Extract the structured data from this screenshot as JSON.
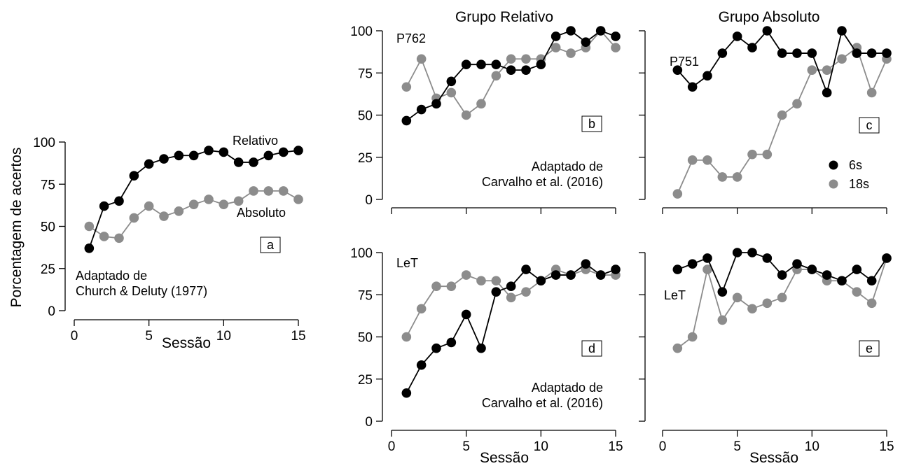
{
  "colors": {
    "black_series": "#000000",
    "gray_series": "#8c8c8c"
  },
  "y_axis_title": "Porcentagem de acertos",
  "legend": {
    "s6": "6s",
    "s18": "18s"
  },
  "chart_data": [
    {
      "type": "line",
      "panel": "a",
      "xlabel": "Sessão",
      "xlim": [
        0,
        15
      ],
      "ylim": [
        0,
        100
      ],
      "xticks": [
        0,
        5,
        10,
        15
      ],
      "yticks": [
        0,
        25,
        50,
        75,
        100
      ],
      "x": [
        1,
        2,
        3,
        4,
        5,
        6,
        7,
        8,
        9,
        10,
        11,
        12,
        13,
        14,
        15
      ],
      "series": [
        {
          "name": "Relativo",
          "color": "#000000",
          "values": [
            37,
            62,
            65,
            80,
            87,
            90,
            92,
            92,
            95,
            94,
            88,
            88,
            92,
            94,
            95
          ]
        },
        {
          "name": "Absoluto",
          "color": "#8c8c8c",
          "values": [
            50,
            44,
            43,
            55,
            62,
            56,
            59,
            63,
            66,
            63,
            65,
            71,
            71,
            71,
            66
          ]
        }
      ],
      "annotations": [
        "Adaptado de",
        "Church & Deluty (1977)"
      ]
    },
    {
      "type": "line",
      "panel": "b",
      "title": "Grupo Relativo",
      "subject": "P762",
      "xlim": [
        0,
        15
      ],
      "ylim": [
        0,
        100
      ],
      "yticks": [
        0,
        25,
        50,
        75,
        100
      ],
      "x": [
        1,
        2,
        3,
        4,
        5,
        6,
        7,
        8,
        9,
        10,
        11,
        12,
        13,
        14,
        15
      ],
      "series": [
        {
          "color": "#000000",
          "values": [
            46.7,
            53.3,
            56.7,
            70,
            80,
            80,
            80,
            76.7,
            76.7,
            80,
            96.7,
            100,
            93.3,
            100,
            96.7
          ]
        },
        {
          "color": "#8c8c8c",
          "values": [
            66.7,
            83.3,
            60,
            63.3,
            50,
            56.7,
            73.3,
            83.3,
            83.3,
            83.3,
            90,
            86.7,
            90,
            100,
            90
          ]
        }
      ],
      "annotations": [
        "Adaptado de",
        "Carvalho et al. (2016)"
      ]
    },
    {
      "type": "line",
      "panel": "c",
      "title": "Grupo Absoluto",
      "subject": "P751",
      "xlim": [
        0,
        15
      ],
      "ylim": [
        0,
        100
      ],
      "x": [
        1,
        2,
        3,
        4,
        5,
        6,
        7,
        8,
        9,
        10,
        11,
        12,
        13,
        14,
        15
      ],
      "series": [
        {
          "name": "6s",
          "color": "#000000",
          "values": [
            76.7,
            66.7,
            73.3,
            86.7,
            96.7,
            90,
            100,
            86.7,
            86.7,
            86.7,
            63.3,
            100,
            86.7,
            86.7,
            86.7
          ]
        },
        {
          "name": "18s",
          "color": "#8c8c8c",
          "values": [
            3.3,
            23.3,
            23.3,
            13.3,
            13.3,
            26.7,
            26.7,
            50,
            56.7,
            76.7,
            76.7,
            83.3,
            90,
            63.3,
            83.3
          ]
        }
      ]
    },
    {
      "type": "line",
      "panel": "d",
      "subject": "LeT",
      "xlabel": "Sessão",
      "xlim": [
        0,
        15
      ],
      "ylim": [
        0,
        100
      ],
      "xticks": [
        0,
        5,
        10,
        15
      ],
      "yticks": [
        0,
        25,
        50,
        75,
        100
      ],
      "x": [
        1,
        2,
        3,
        4,
        5,
        6,
        7,
        8,
        9,
        10,
        11,
        12,
        13,
        14,
        15
      ],
      "series": [
        {
          "color": "#000000",
          "values": [
            16.7,
            33.3,
            43.3,
            46.7,
            63.3,
            43.3,
            76.7,
            80,
            90,
            83.3,
            86.7,
            86.7,
            93.3,
            86.7,
            90
          ]
        },
        {
          "color": "#8c8c8c",
          "values": [
            50,
            66.7,
            80,
            80,
            86.7,
            83.3,
            83.3,
            73.3,
            76.7,
            83.3,
            90,
            86.7,
            90,
            86.7,
            86.7
          ]
        }
      ],
      "annotations": [
        "Adaptado de",
        "Carvalho et al. (2016)"
      ]
    },
    {
      "type": "line",
      "panel": "e",
      "subject": "LeT",
      "xlabel": "Sessão",
      "xlim": [
        0,
        15
      ],
      "ylim": [
        0,
        100
      ],
      "xticks": [
        0,
        5,
        10,
        15
      ],
      "x": [
        1,
        2,
        3,
        4,
        5,
        6,
        7,
        8,
        9,
        10,
        11,
        12,
        13,
        14,
        15
      ],
      "series": [
        {
          "color": "#000000",
          "values": [
            90,
            93.3,
            96.7,
            76.7,
            100,
            100,
            96.7,
            86.7,
            93.3,
            90,
            86.7,
            83.3,
            90,
            83.3,
            96.7
          ]
        },
        {
          "color": "#8c8c8c",
          "values": [
            43.3,
            50,
            90,
            60,
            73.3,
            66.7,
            70,
            73.3,
            90,
            90,
            83.3,
            83.3,
            76.7,
            70,
            96.7
          ]
        }
      ]
    }
  ]
}
